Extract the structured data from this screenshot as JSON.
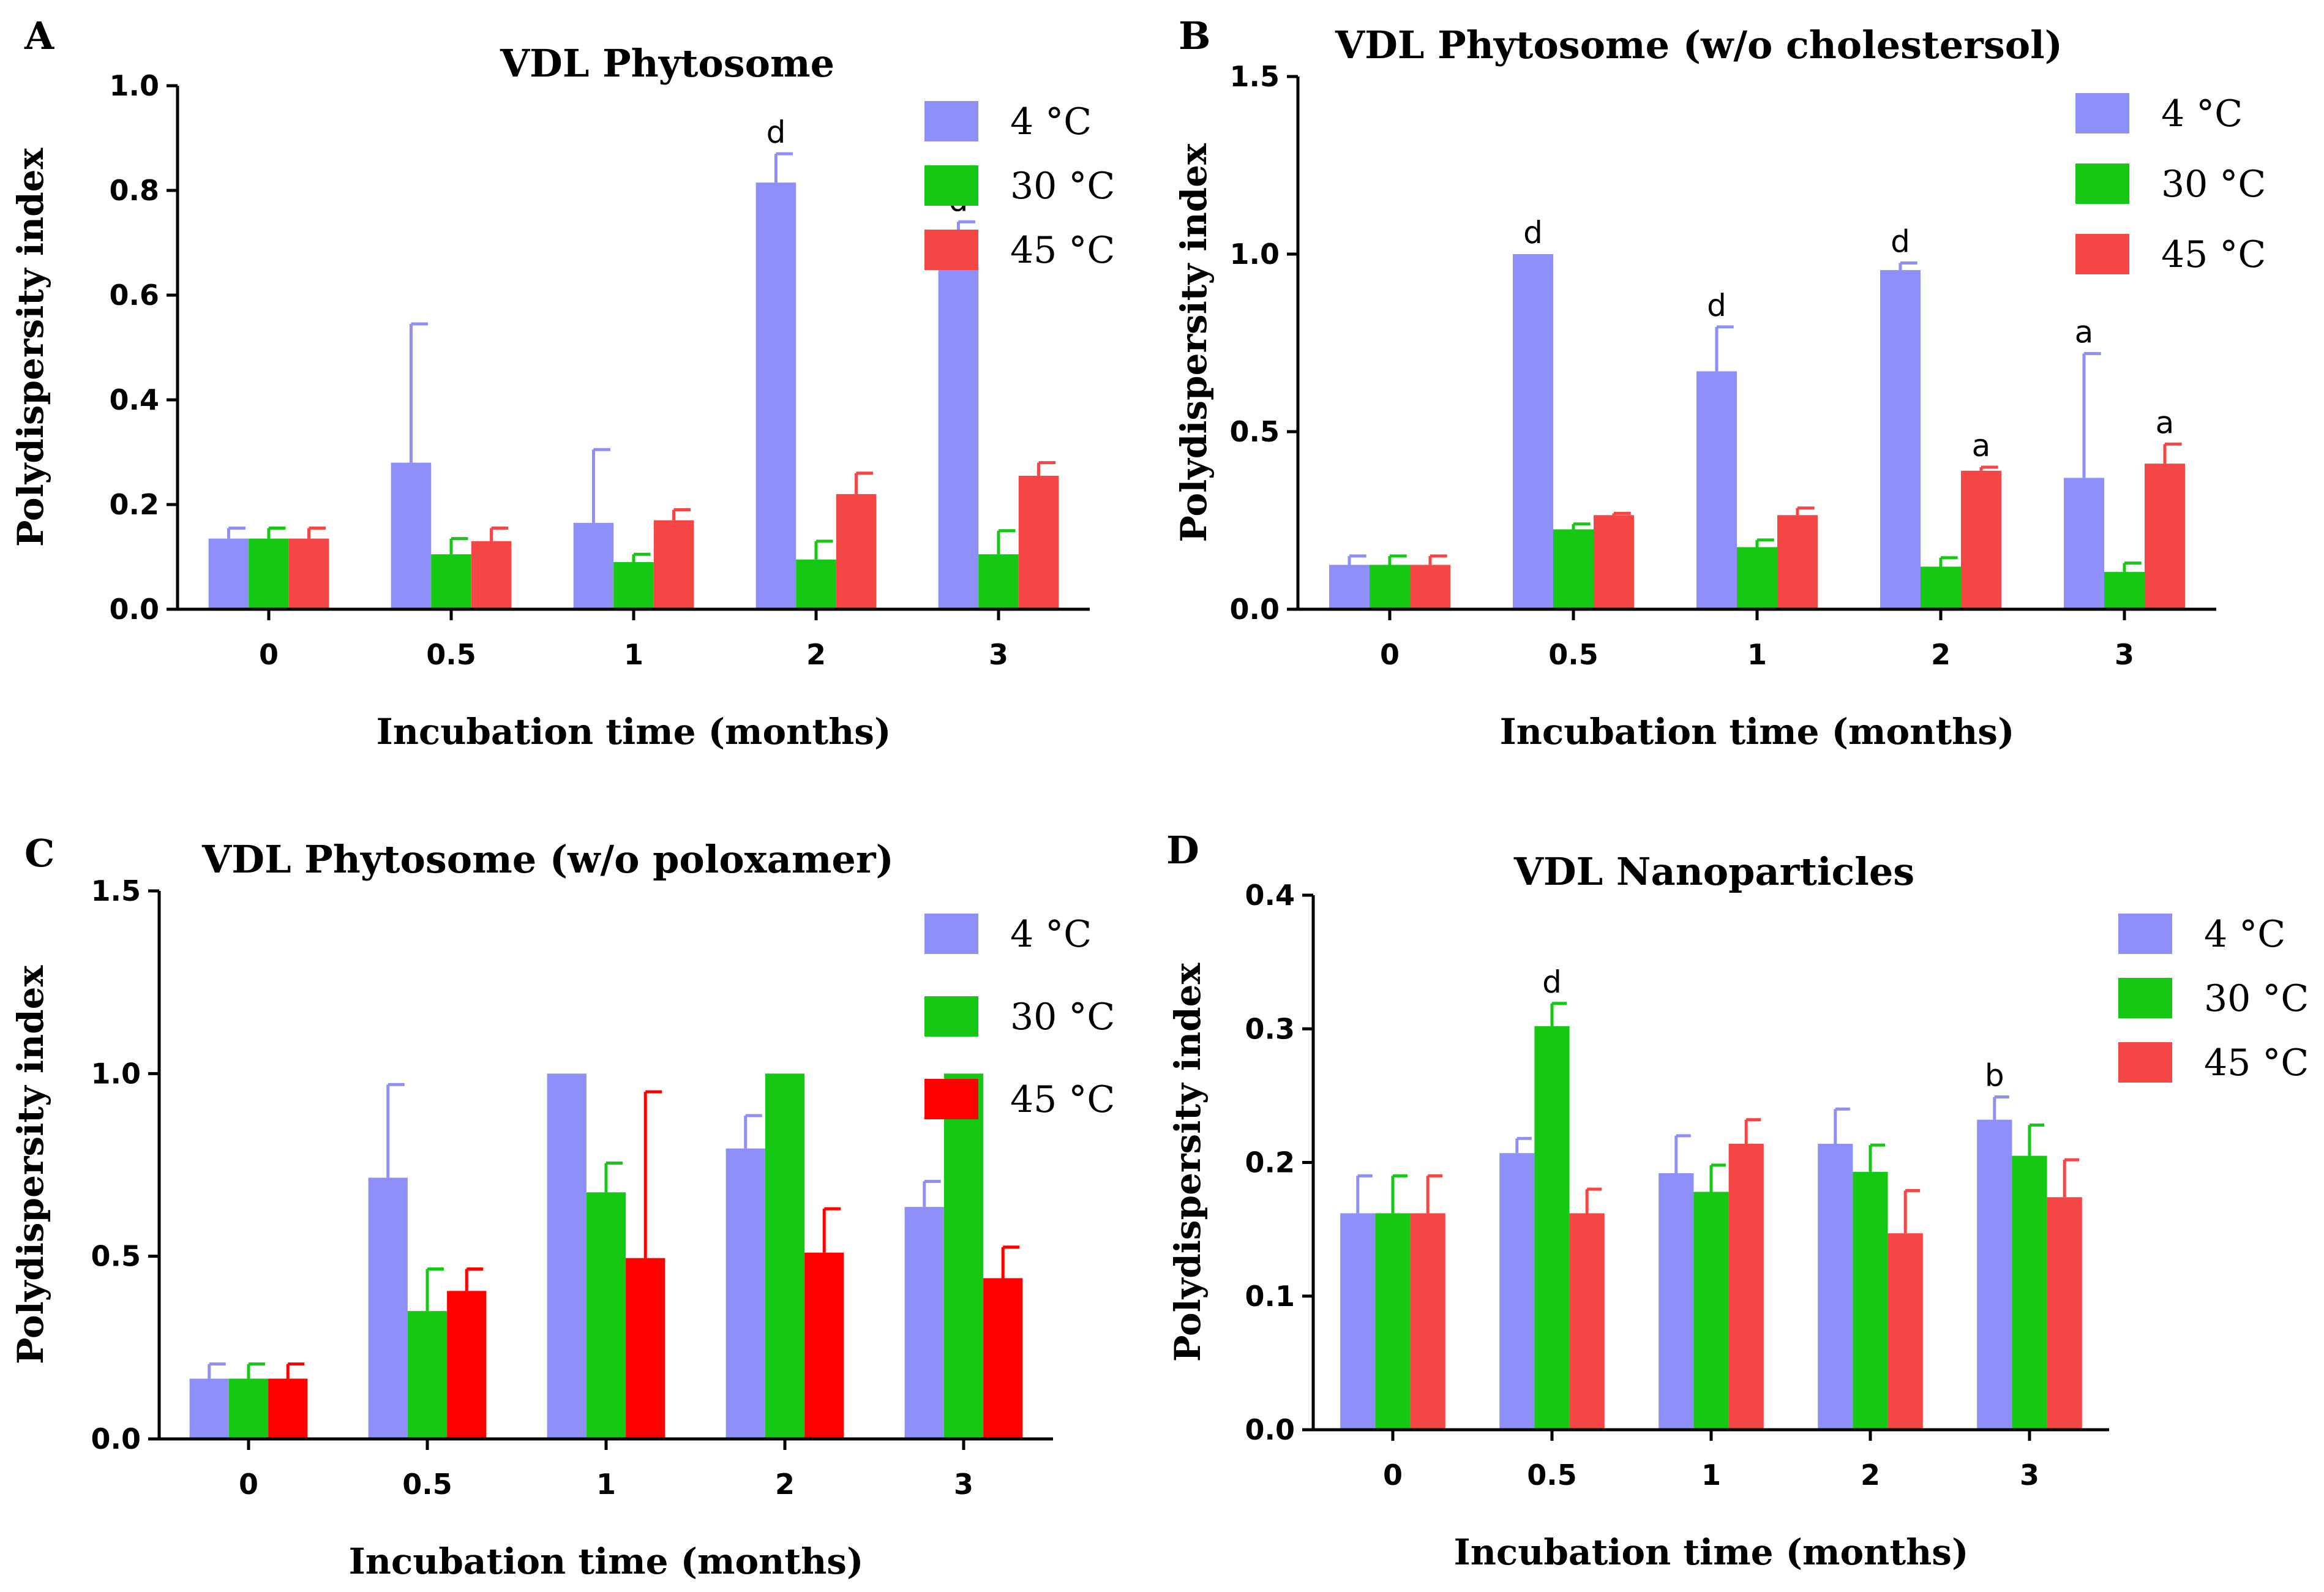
{
  "chart_data": [
    {
      "panel": "A",
      "type": "bar",
      "title": "VDL Phytosome",
      "xlabel": "Incubation time (months)",
      "ylabel": "Polydispersity index",
      "categories": [
        "0",
        "0.5",
        "1",
        "2",
        "3"
      ],
      "ylim": [
        0,
        1.0
      ],
      "yticks": [
        "0.0",
        "0.2",
        "0.4",
        "0.6",
        "0.8",
        "1.0"
      ],
      "legend_position": "top-right",
      "series": [
        {
          "name": "4 °C",
          "color": "#8f8ffa",
          "values": [
            0.135,
            0.28,
            0.165,
            0.815,
            0.66
          ],
          "errors": [
            0.02,
            0.265,
            0.14,
            0.055,
            0.08
          ]
        },
        {
          "name": "30 °C",
          "color": "#14c814",
          "values": [
            0.135,
            0.105,
            0.09,
            0.095,
            0.105
          ],
          "errors": [
            0.02,
            0.03,
            0.015,
            0.035,
            0.045
          ]
        },
        {
          "name": "45 °C",
          "color": "#f54646",
          "values": [
            0.135,
            0.13,
            0.17,
            0.22,
            0.255
          ],
          "errors": [
            0.02,
            0.025,
            0.02,
            0.04,
            0.025
          ]
        }
      ],
      "annotations": [
        {
          "category": "2",
          "series": "4 °C",
          "text": "d"
        },
        {
          "category": "3",
          "series": "4 °C",
          "text": "d"
        }
      ]
    },
    {
      "panel": "B",
      "type": "bar",
      "title": "VDL Phytosome (w/o cholestersol)",
      "xlabel": "Incubation time (months)",
      "ylabel": "Polydispersity index",
      "categories": [
        "0",
        "0.5",
        "1",
        "2",
        "3"
      ],
      "ylim": [
        0,
        1.5
      ],
      "yticks": [
        "0.0",
        "0.5",
        "1.0",
        "1.5"
      ],
      "legend_position": "top-right",
      "series": [
        {
          "name": "4 °C",
          "color": "#8f8ffa",
          "values": [
            0.125,
            1.0,
            0.67,
            0.955,
            0.37
          ],
          "errors": [
            0.025,
            0.0,
            0.125,
            0.02,
            0.35
          ]
        },
        {
          "name": "30 °C",
          "color": "#14c814",
          "values": [
            0.125,
            0.225,
            0.175,
            0.12,
            0.105
          ],
          "errors": [
            0.025,
            0.015,
            0.02,
            0.025,
            0.025
          ]
        },
        {
          "name": "45 °C",
          "color": "#f54646",
          "values": [
            0.125,
            0.265,
            0.265,
            0.39,
            0.41
          ],
          "errors": [
            0.025,
            0.005,
            0.02,
            0.01,
            0.055
          ]
        }
      ],
      "annotations": [
        {
          "category": "0.5",
          "series": "4 °C",
          "text": "d"
        },
        {
          "category": "1",
          "series": "4 °C",
          "text": "d"
        },
        {
          "category": "2",
          "series": "4 °C",
          "text": "d"
        },
        {
          "category": "2",
          "series": "45 °C",
          "text": "a"
        },
        {
          "category": "3",
          "series": "4 °C",
          "text": "a"
        },
        {
          "category": "3",
          "series": "45 °C",
          "text": "a"
        }
      ]
    },
    {
      "panel": "C",
      "type": "bar",
      "title": "VDL Phytosome (w/o poloxamer)",
      "xlabel": "Incubation time (months)",
      "ylabel": "Polydispersity index",
      "categories": [
        "0",
        "0.5",
        "1",
        "2",
        "3"
      ],
      "ylim": [
        0,
        1.5
      ],
      "yticks": [
        "0.0",
        "0.5",
        "1.0",
        "1.5"
      ],
      "legend_position": "top-right",
      "series": [
        {
          "name": "4 °C",
          "color": "#8f8ffa",
          "values": [
            0.165,
            0.715,
            1.0,
            0.795,
            0.635
          ],
          "errors": [
            0.04,
            0.255,
            0.0,
            0.09,
            0.07
          ]
        },
        {
          "name": "30 °C",
          "color": "#14c814",
          "values": [
            0.165,
            0.35,
            0.675,
            1.0,
            1.0
          ],
          "errors": [
            0.04,
            0.115,
            0.08,
            0.0,
            0.0
          ]
        },
        {
          "name": "45 °C",
          "color": "#ff0000",
          "values": [
            0.165,
            0.405,
            0.495,
            0.51,
            0.44
          ],
          "errors": [
            0.04,
            0.06,
            0.455,
            0.12,
            0.085
          ]
        }
      ],
      "annotations": []
    },
    {
      "panel": "D",
      "type": "bar",
      "title": "VDL Nanoparticles",
      "xlabel": "Incubation time (months)",
      "ylabel": "Polydispersity index",
      "categories": [
        "0",
        "0.5",
        "1",
        "2",
        "3"
      ],
      "ylim": [
        0,
        0.4
      ],
      "yticks": [
        "0.0",
        "0.1",
        "0.2",
        "0.3",
        "0.4"
      ],
      "legend_position": "top-right",
      "series": [
        {
          "name": "4 °C",
          "color": "#8f8ffa",
          "values": [
            0.162,
            0.207,
            0.192,
            0.214,
            0.232
          ],
          "errors": [
            0.028,
            0.011,
            0.028,
            0.026,
            0.017
          ]
        },
        {
          "name": "30 °C",
          "color": "#14c814",
          "values": [
            0.162,
            0.302,
            0.178,
            0.193,
            0.205
          ],
          "errors": [
            0.028,
            0.017,
            0.02,
            0.02,
            0.023
          ]
        },
        {
          "name": "45 °C",
          "color": "#f54646",
          "values": [
            0.162,
            0.162,
            0.214,
            0.147,
            0.174
          ],
          "errors": [
            0.028,
            0.018,
            0.018,
            0.032,
            0.028
          ]
        }
      ],
      "annotations": [
        {
          "category": "0.5",
          "series": "30 °C",
          "text": "d"
        },
        {
          "category": "3",
          "series": "4 °C",
          "text": "b"
        }
      ]
    }
  ]
}
